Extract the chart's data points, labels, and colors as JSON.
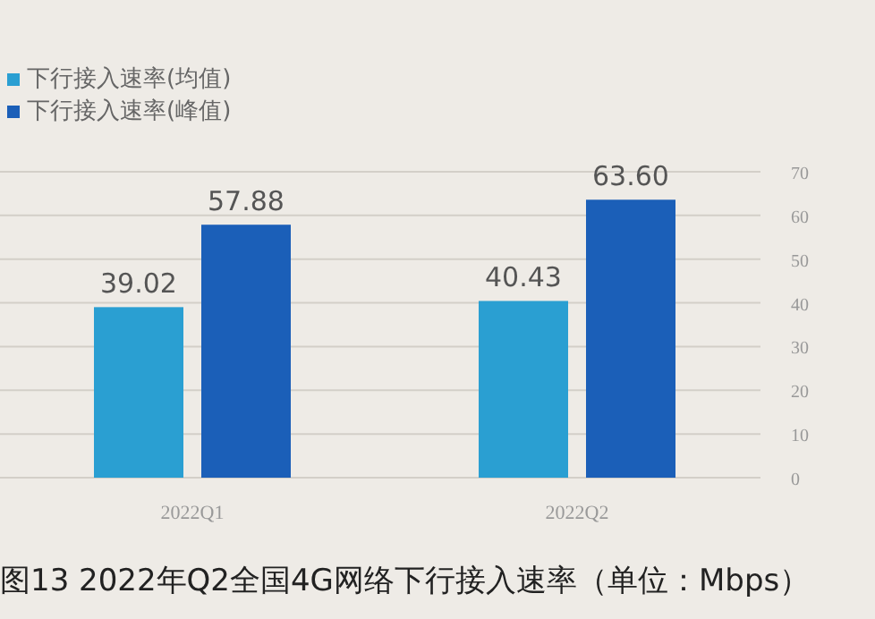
{
  "chart_data": {
    "type": "bar",
    "title": "图13 2022年Q2全国4G网络下行接入速率（单位：Mbps）",
    "categories": [
      "2022Q1",
      "2022Q2"
    ],
    "series": [
      {
        "name": "下行接入速率(均值)",
        "color": "#2a9fd2",
        "values": [
          39.02,
          40.43
        ]
      },
      {
        "name": "下行接入速率(峰值)",
        "color": "#1b5fb8",
        "values": [
          57.88,
          63.6
        ]
      }
    ],
    "value_labels": [
      [
        "39.02",
        "40.43"
      ],
      [
        "57.88",
        "63.60"
      ]
    ],
    "ylim": [
      0,
      70
    ],
    "yticks": [
      0,
      10,
      20,
      30,
      40,
      50,
      60,
      70
    ],
    "grid": "y",
    "legend": "top left"
  }
}
